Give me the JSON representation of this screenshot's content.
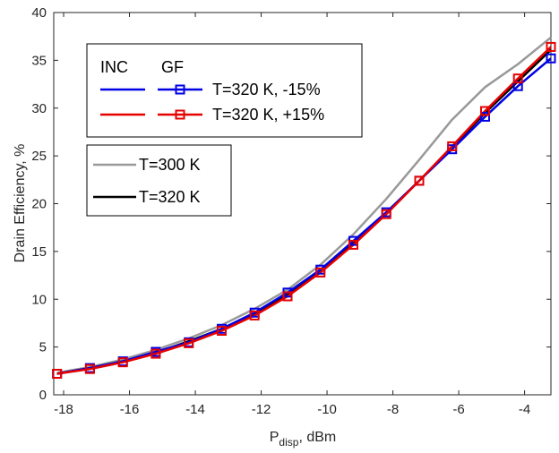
{
  "chart_data": {
    "type": "line",
    "xlabel_main": "P",
    "xlabel_sub": "disp",
    "xlabel_rest": ", dBm",
    "ylabel": "Drain Efficiency, %",
    "xlim": [
      -18.3,
      -3.2
    ],
    "ylim": [
      0,
      40
    ],
    "xticks": [
      -18,
      -16,
      -14,
      -12,
      -10,
      -8,
      -6,
      -4
    ],
    "xtick_labels": [
      "-18",
      "-16",
      "-14",
      "-12",
      "-10",
      "-8",
      "-6",
      "-4"
    ],
    "yticks": [
      0,
      5,
      10,
      15,
      20,
      25,
      30,
      35,
      40
    ],
    "ytick_labels": [
      "0",
      "5",
      "10",
      "15",
      "20",
      "25",
      "30",
      "35",
      "40"
    ],
    "grid": false,
    "x": [
      -18.2,
      -17.2,
      -16.2,
      -15.2,
      -14.2,
      -13.2,
      -12.2,
      -11.2,
      -10.2,
      -9.2,
      -8.2,
      -7.2,
      -6.2,
      -5.2,
      -4.2,
      -3.2
    ],
    "series": [
      {
        "name": "T=300 K",
        "style": "solid",
        "color": "#999999",
        "values": [
          2.3,
          2.9,
          3.7,
          4.7,
          5.9,
          7.3,
          9.0,
          11.0,
          13.6,
          16.8,
          20.5,
          24.6,
          28.8,
          32.2,
          34.6,
          37.4
        ]
      },
      {
        "name": "T=320 K",
        "style": "solid",
        "color": "#000000",
        "values": [
          2.2,
          2.8,
          3.5,
          4.4,
          5.6,
          6.9,
          8.5,
          10.5,
          12.9,
          15.9,
          19.0,
          22.4,
          25.9,
          29.5,
          32.8,
          36.1
        ]
      },
      {
        "name": "T=320 K, -15%",
        "style": "markers",
        "color": "#0000e6",
        "values": [
          2.2,
          2.8,
          3.5,
          4.5,
          5.5,
          6.9,
          8.6,
          10.7,
          13.1,
          16.1,
          19.1,
          22.4,
          25.7,
          29.1,
          32.3,
          35.2
        ]
      },
      {
        "name": "T=320 K, +15%",
        "style": "markers",
        "color": "#e60000",
        "values": [
          2.2,
          2.7,
          3.4,
          4.3,
          5.4,
          6.7,
          8.3,
          10.3,
          12.8,
          15.7,
          18.9,
          22.4,
          26.0,
          29.7,
          33.1,
          36.4
        ]
      }
    ],
    "legend_top": {
      "headers": [
        "INC",
        "GF"
      ],
      "entries": [
        {
          "label": "T=320 K, -15%",
          "color": "#0000e6"
        },
        {
          "label": "T=320 K, +15%",
          "color": "#e60000"
        }
      ],
      "placement": "top-left"
    },
    "legend_bottom": {
      "entries": [
        {
          "label": "T=300 K",
          "color": "#999999"
        },
        {
          "label": "T=320 K",
          "color": "#000000"
        }
      ],
      "placement": "upper-left"
    }
  }
}
